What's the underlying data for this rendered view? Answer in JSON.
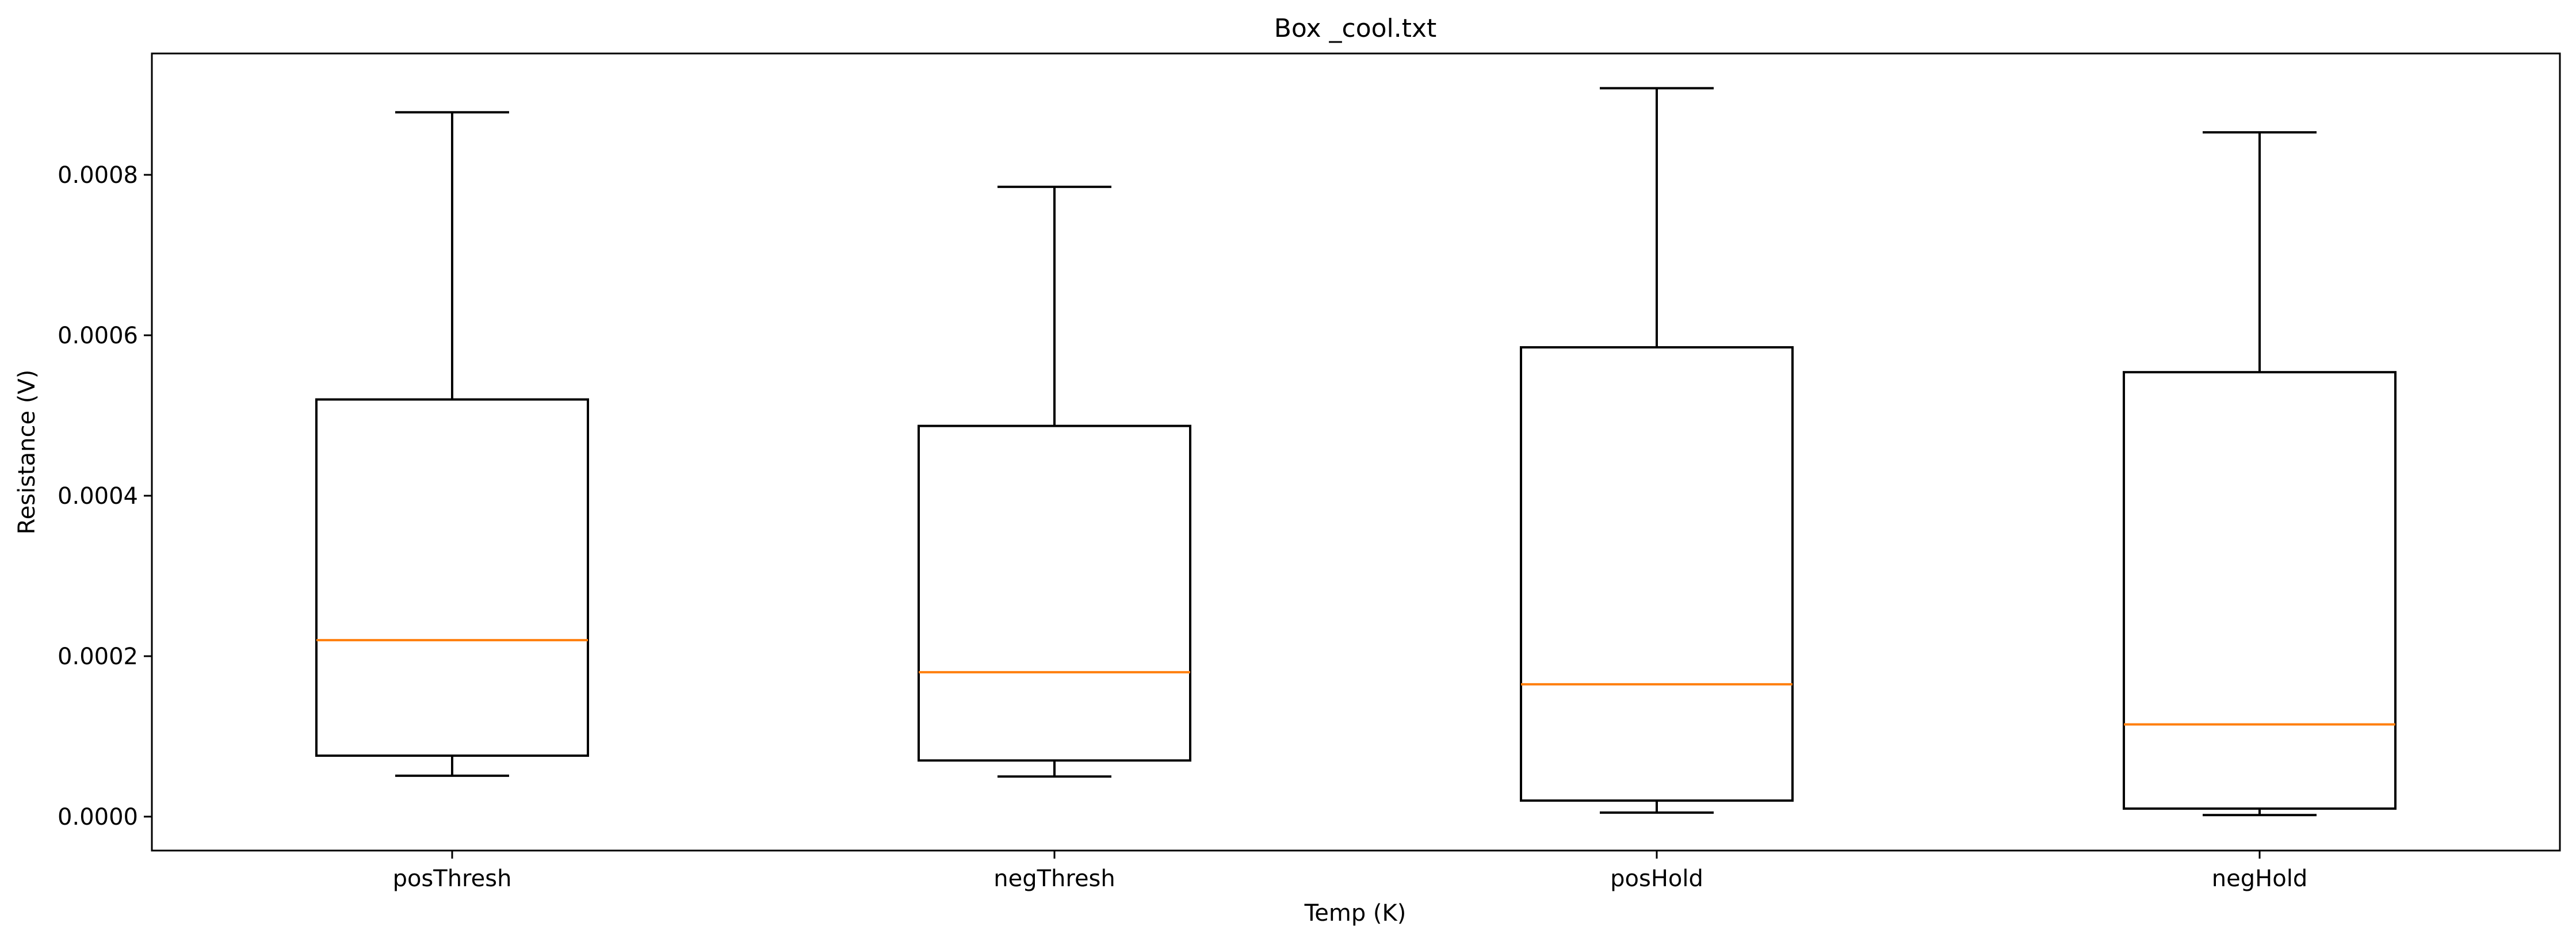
{
  "chart_data": {
    "type": "box",
    "title": "Box _cool.txt",
    "xlabel": "Temp (K)",
    "ylabel": "Resistance (V)",
    "ylim": [
      -4e-05,
      0.000955
    ],
    "yticks": [
      "0.0000",
      "0.0002",
      "0.0004",
      "0.0006",
      "0.0008"
    ],
    "categories": [
      "posThresh",
      "negThresh",
      "posHold",
      "negHold"
    ],
    "boxes": [
      {
        "category": "posThresh",
        "whisker_low": 5.1e-05,
        "q1": 7.6e-05,
        "median": 0.00022,
        "q3": 0.00052,
        "whisker_high": 0.000878
      },
      {
        "category": "negThresh",
        "whisker_low": 5e-05,
        "q1": 7e-05,
        "median": 0.00018,
        "q3": 0.000487,
        "whisker_high": 0.000785
      },
      {
        "category": "posHold",
        "whisker_low": 5e-06,
        "q1": 2e-05,
        "median": 0.000165,
        "q3": 0.000585,
        "whisker_high": 0.000908
      },
      {
        "category": "negHold",
        "whisker_low": 2e-06,
        "q1": 1e-05,
        "median": 0.000115,
        "q3": 0.000554,
        "whisker_high": 0.000853
      }
    ],
    "colors": {
      "box": "#000000",
      "median": "#ff7f0e"
    },
    "grid": false,
    "legend": "none"
  }
}
